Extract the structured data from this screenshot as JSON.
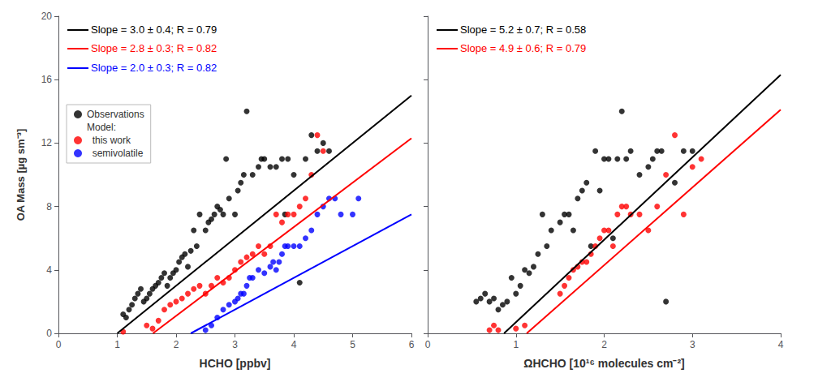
{
  "chart_data": [
    {
      "type": "scatter",
      "xlabel": "HCHO [ppbv]",
      "ylabel": "OA Mass [µg sm⁻³]",
      "xlim": [
        0,
        6
      ],
      "ylim": [
        0,
        20
      ],
      "xticks": [
        0,
        1,
        2,
        3,
        4,
        5,
        6
      ],
      "yticks": [
        0,
        4,
        8,
        12,
        16,
        20
      ],
      "grid": false,
      "legend": "upper left",
      "legend_heading": "Model:",
      "annotations": [
        {
          "text": "Slope = 3.0 ± 0.4; R = 0.79",
          "color": "black"
        },
        {
          "text": "Slope = 2.8 ± 0.3; R = 0.82",
          "color": "red"
        },
        {
          "text": "Slope = 2.0 ± 0.3; R = 0.82",
          "color": "blue"
        }
      ],
      "series": [
        {
          "name": "Observations",
          "type": "scatter",
          "color": "black",
          "x": [
            1.1,
            1.15,
            1.2,
            1.25,
            1.3,
            1.35,
            1.4,
            1.45,
            1.5,
            1.55,
            1.6,
            1.65,
            1.7,
            1.75,
            1.8,
            1.85,
            1.9,
            1.95,
            2.0,
            2.05,
            2.1,
            2.15,
            2.2,
            2.25,
            2.3,
            2.35,
            2.4,
            2.5,
            2.55,
            2.6,
            2.65,
            2.7,
            2.75,
            2.8,
            2.85,
            2.9,
            3.0,
            3.05,
            3.1,
            3.15,
            3.2,
            3.3,
            3.4,
            3.45,
            3.5,
            3.6,
            3.7,
            3.8,
            3.85,
            3.9,
            4.0,
            4.1,
            4.2,
            4.3,
            4.4,
            4.5,
            4.6
          ],
          "values": [
            1.2,
            1.0,
            1.5,
            1.8,
            2.2,
            2.5,
            2.8,
            2.0,
            2.2,
            2.5,
            2.8,
            3.0,
            3.2,
            3.5,
            3.8,
            3.0,
            3.5,
            3.8,
            4.0,
            4.5,
            4.8,
            5.0,
            4.2,
            5.2,
            6.5,
            5.5,
            7.5,
            6.5,
            7.0,
            7.2,
            7.5,
            8.0,
            7.8,
            7.5,
            11.0,
            8.5,
            7.5,
            9.0,
            9.5,
            10.0,
            14.0,
            10.0,
            10.5,
            11.0,
            11.0,
            10.5,
            10.5,
            11.0,
            7.5,
            11.0,
            10.0,
            3.2,
            11.0,
            12.5,
            11.5,
            12.0,
            11.5
          ]
        },
        {
          "name": "  this work",
          "type": "scatter",
          "color": "red",
          "x": [
            1.1,
            1.5,
            1.6,
            1.7,
            1.8,
            1.9,
            2.0,
            2.1,
            2.2,
            2.3,
            2.4,
            2.5,
            2.6,
            2.7,
            2.8,
            2.9,
            3.0,
            3.1,
            3.2,
            3.3,
            3.4,
            3.5,
            3.6,
            3.7,
            3.8,
            3.9,
            4.0,
            4.1,
            4.2,
            4.3,
            4.4,
            4.5
          ],
          "values": [
            0.1,
            0.5,
            0.3,
            0.8,
            1.5,
            1.8,
            2.0,
            2.2,
            2.5,
            2.8,
            3.0,
            2.5,
            3.0,
            3.5,
            3.2,
            3.5,
            4.0,
            4.5,
            4.8,
            5.0,
            5.5,
            5.0,
            5.5,
            7.5,
            7.0,
            7.5,
            7.5,
            8.0,
            8.5,
            10.0,
            12.5,
            11.5
          ]
        },
        {
          "name": "  semivolatile",
          "type": "scatter",
          "color": "blue",
          "x": [
            2.5,
            2.6,
            2.7,
            2.8,
            2.9,
            3.0,
            3.05,
            3.1,
            3.15,
            3.2,
            3.25,
            3.3,
            3.4,
            3.5,
            3.6,
            3.65,
            3.7,
            3.75,
            3.8,
            3.85,
            3.9,
            4.0,
            4.1,
            4.2,
            4.3,
            4.4,
            4.5,
            4.6,
            4.7,
            4.8,
            5.0,
            5.1
          ],
          "values": [
            0.2,
            0.5,
            1.0,
            1.5,
            1.8,
            2.0,
            2.2,
            2.5,
            2.5,
            3.0,
            3.5,
            3.5,
            4.0,
            3.8,
            4.2,
            4.5,
            4.0,
            4.5,
            5.0,
            5.5,
            5.5,
            5.5,
            5.5,
            6.0,
            6.5,
            7.5,
            8.0,
            8.5,
            8.5,
            7.5,
            7.5,
            8.5
          ]
        },
        {
          "type": "line",
          "color": "black",
          "x": [
            1,
            6
          ],
          "values": [
            0,
            15
          ]
        },
        {
          "type": "line",
          "color": "red",
          "x": [
            1.607142857142857,
            6
          ],
          "values": [
            0,
            12.3
          ]
        },
        {
          "type": "line",
          "color": "blue",
          "x": [
            2.25,
            6
          ],
          "values": [
            0,
            7.5
          ]
        }
      ]
    },
    {
      "type": "scatter",
      "xlabel": "ΩHCHO [10¹⁶ molecules cm⁻²]",
      "xlim": [
        0,
        4
      ],
      "ylim": [
        0,
        20
      ],
      "xticks": [
        0,
        1,
        2,
        3,
        4
      ],
      "yticks": [
        0,
        4,
        8,
        12,
        16,
        20
      ],
      "grid": false,
      "tick_labels": "x",
      "annotations": [
        {
          "text": "Slope = 5.2 ± 0.7; R = 0.58",
          "color": "black"
        },
        {
          "text": "Slope = 4.9 ± 0.6; R = 0.79",
          "color": "red"
        }
      ],
      "series": [
        {
          "type": "scatter",
          "color": "black",
          "x": [
            0.55,
            0.6,
            0.65,
            0.7,
            0.75,
            0.8,
            0.85,
            0.9,
            0.95,
            1.0,
            1.05,
            1.1,
            1.15,
            1.2,
            1.25,
            1.3,
            1.35,
            1.4,
            1.5,
            1.55,
            1.6,
            1.65,
            1.7,
            1.75,
            1.8,
            1.85,
            1.9,
            1.95,
            2.0,
            2.05,
            2.1,
            2.15,
            2.2,
            2.25,
            2.3,
            2.4,
            2.5,
            2.55,
            2.6,
            2.65,
            2.7,
            2.8,
            2.9,
            3.0
          ],
          "values": [
            2.0,
            2.2,
            2.5,
            2.0,
            2.2,
            1.5,
            1.8,
            2.0,
            3.5,
            2.5,
            3.0,
            4.0,
            3.8,
            4.2,
            5.0,
            7.5,
            5.5,
            6.5,
            7.0,
            7.5,
            7.5,
            6.5,
            8.5,
            9.0,
            9.5,
            5.5,
            11.5,
            9.0,
            11.0,
            11.0,
            6.0,
            11.0,
            14.0,
            11.0,
            11.5,
            10.0,
            10.5,
            11.0,
            11.5,
            11.5,
            2.0,
            9.5,
            11.5,
            11.5
          ]
        },
        {
          "type": "scatter",
          "color": "red",
          "x": [
            0.7,
            0.75,
            0.8,
            1.0,
            1.1,
            1.5,
            1.55,
            1.6,
            1.65,
            1.7,
            1.75,
            1.8,
            1.85,
            1.9,
            1.95,
            2.0,
            2.05,
            2.1,
            2.15,
            2.2,
            2.25,
            2.3,
            2.4,
            2.5,
            2.6,
            2.7,
            2.8,
            2.9,
            3.0,
            3.1
          ],
          "values": [
            0.2,
            0.5,
            0.2,
            0.3,
            0.5,
            2.5,
            3.0,
            3.5,
            4.0,
            4.2,
            4.5,
            4.5,
            5.0,
            5.5,
            6.0,
            6.5,
            6.5,
            5.5,
            7.5,
            8.0,
            8.0,
            7.5,
            7.5,
            6.5,
            8.0,
            10.0,
            12.5,
            7.5,
            10.5,
            11.0
          ]
        },
        {
          "type": "line",
          "color": "black",
          "x": [
            0.8653846153846154,
            4
          ],
          "values": [
            0,
            16.3
          ]
        },
        {
          "type": "line",
          "color": "red",
          "x": [
            1.1224489795918366,
            4
          ],
          "values": [
            0,
            14.1
          ]
        }
      ]
    }
  ]
}
